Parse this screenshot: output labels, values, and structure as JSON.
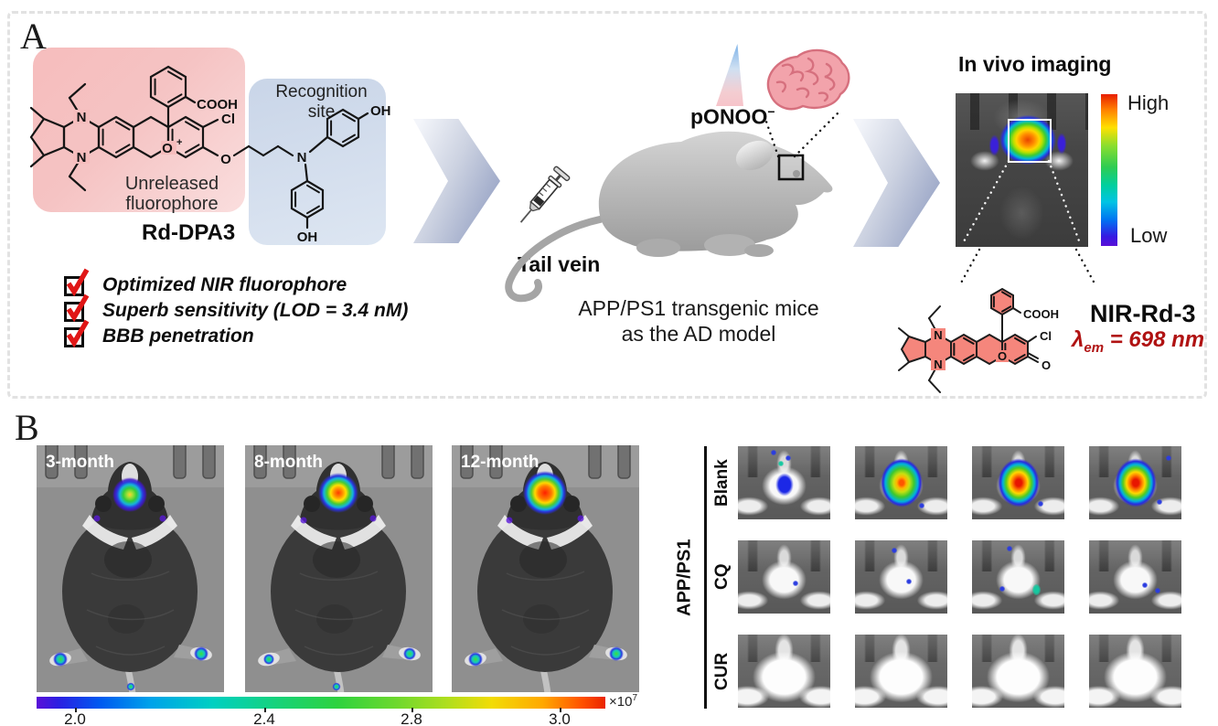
{
  "figure_labels": {
    "panelA": "A",
    "panelB": "B"
  },
  "panelA": {
    "probe": {
      "name": "Rd-DPA3",
      "fluorophore_label_line1": "Unreleased",
      "fluorophore_label_line2": "fluorophore",
      "recognition_label": "Recognition site",
      "atom_labels": {
        "cooh": "COOH",
        "cl": "Cl",
        "o_ring": "O",
        "o_charge": "+",
        "n_top": "N",
        "n_bottom": "N",
        "ether_o": "O",
        "amine_n": "N",
        "oh_right": "OH",
        "oh_bottom": "OH"
      }
    },
    "checklist": [
      {
        "checked": true,
        "label": "Optimized NIR fluorophore"
      },
      {
        "checked": true,
        "label": "Superb sensitivity (LOD = 3.4 nM)"
      },
      {
        "checked": true,
        "label": "BBB penetration"
      }
    ],
    "model": {
      "injection_label": "Tail vein",
      "analyte": "pONOO",
      "analyte_charge": "−",
      "caption_line1": "APP/PS1 transgenic mice",
      "caption_line2": "as the AD model"
    },
    "imaging": {
      "title": "In vivo imaging",
      "scale_high": "High",
      "scale_low": "Low",
      "product": {
        "name": "NIR-Rd-3",
        "lambda": "λ",
        "lambda_sub": "em",
        "emission_rest": " = 698 nm",
        "atom_labels": {
          "cooh": "COOH",
          "cl": "Cl",
          "o_ring": "O",
          "o_ketone": "O",
          "n_top": "N",
          "n_bottom": "N"
        }
      }
    }
  },
  "panelB": {
    "timecourse": {
      "mice": [
        {
          "label": "3-month",
          "head_signal": "moderate"
        },
        {
          "label": "8-month",
          "head_signal": "high"
        },
        {
          "label": "12-month",
          "head_signal": "highest"
        }
      ],
      "colorbar": {
        "ticks": [
          "2.0",
          "2.4",
          "2.8",
          "3.0"
        ],
        "multiplier_base": "×10",
        "multiplier_exp": "7"
      }
    },
    "treatment": {
      "group": "APP/PS1",
      "rows": [
        {
          "label": "Blank",
          "signal": "high"
        },
        {
          "label": "CQ",
          "signal": "low"
        },
        {
          "label": "CUR",
          "signal": "none"
        }
      ]
    }
  }
}
